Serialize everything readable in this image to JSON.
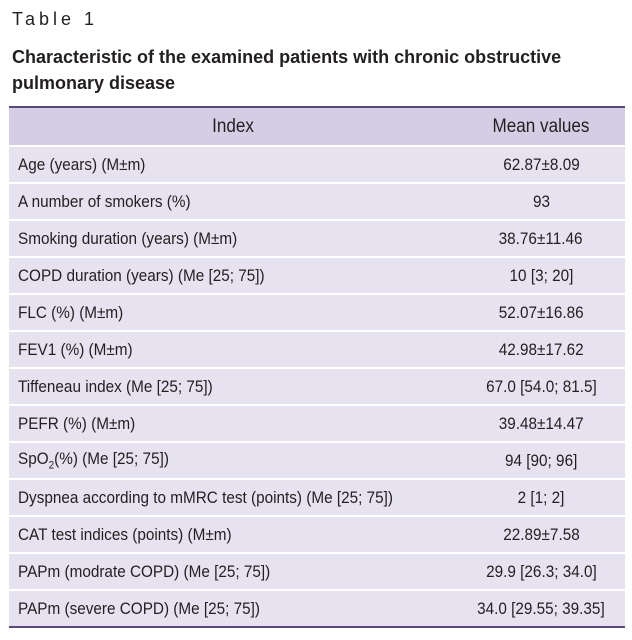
{
  "table_label": "Table 1",
  "caption": "Characteristic of the examined patients with chronic obstructive pulmonary disease",
  "headers": {
    "index": "Index",
    "mean": "Mean values"
  },
  "rows": [
    {
      "index": "Age (years) (M±m)",
      "value": "62.87±8.09"
    },
    {
      "index": "A number of smokers (%)",
      "value": "93"
    },
    {
      "index": "Smoking duration (years) (M±m)",
      "value": "38.76±11.46"
    },
    {
      "index": "COPD duration (years) (Me [25; 75])",
      "value": "10 [3; 20]"
    },
    {
      "index": "FLC (%) (M±m)",
      "value": "52.07±16.86"
    },
    {
      "index": "FEV1 (%) (M±m)",
      "value": "42.98±17.62"
    },
    {
      "index": "Tiffeneau index (Me [25; 75])",
      "value": "67.0 [54.0; 81.5]"
    },
    {
      "index": "PEFR (%) (M±m)",
      "value": "39.48±14.47"
    },
    {
      "index_pre": "SpO",
      "index_sub": "2",
      "index_post": "(%) (Me [25; 75])",
      "value": "94 [90; 96]"
    },
    {
      "index": "Dyspnea according to mMRC test (points) (Me [25; 75])",
      "value": "2 [1; 2]"
    },
    {
      "index": "CAT test indices (points) (M±m)",
      "value": "22.89±7.58"
    },
    {
      "index": "PAPm (modrate COPD) (Me [25; 75])",
      "value": "29.9 [26.3; 34.0]"
    },
    {
      "index": "PAPm (severe COPD) (Me [25; 75])",
      "value": "34.0 [29.55; 39.35]"
    }
  ]
}
